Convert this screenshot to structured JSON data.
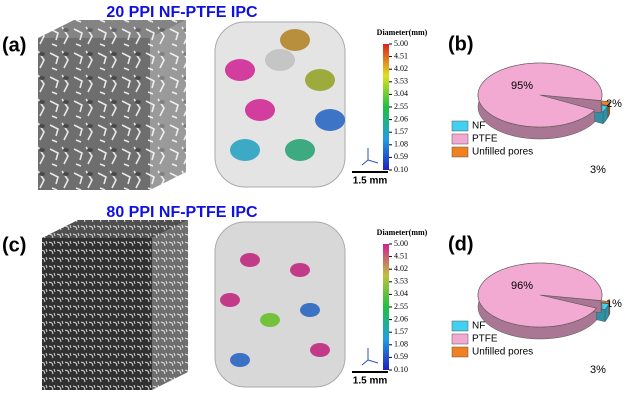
{
  "rows": [
    {
      "title": "20 PPI NF-PTFE IPC",
      "image_label": "(a)",
      "scale_bar": "1.5 mm",
      "colorbar": {
        "title": "Diameter(mm)",
        "ylim": [
          0.1,
          5.0
        ],
        "colors": [
          "#2020c0",
          "#20a0e0",
          "#20c040",
          "#e0e020",
          "#e02020"
        ],
        "ticks": [
          {
            "value": 5.0,
            "label": "5.00"
          },
          {
            "value": 4.51,
            "label": "4.51"
          },
          {
            "value": 4.02,
            "label": "4.02"
          },
          {
            "value": 3.53,
            "label": "3.53"
          },
          {
            "value": 3.04,
            "label": "3.04"
          },
          {
            "value": 2.55,
            "label": "2.55"
          },
          {
            "value": 2.06,
            "label": "2.06"
          },
          {
            "value": 1.57,
            "label": "1.57"
          },
          {
            "value": 1.08,
            "label": "1.08"
          },
          {
            "value": 0.59,
            "label": "0.59"
          },
          {
            "value": 0.1,
            "label": "0.10"
          }
        ]
      },
      "chart": {
        "type": "pie",
        "label": "(b)",
        "categories": [
          "NF",
          "PTFE",
          "Unfilled pores"
        ],
        "values": [
          3,
          95,
          2
        ],
        "value_labels": [
          "3%",
          "95%",
          "2%"
        ],
        "colors": [
          "#40d0f0",
          "#f2a9d2",
          "#f08020"
        ]
      }
    },
    {
      "title": "80 PPI NF-PTFE IPC",
      "image_label": "(c)",
      "scale_bar": "1.5 mm",
      "colorbar": {
        "title": "Diameter(mm)",
        "ylim": [
          0.1,
          5.0
        ],
        "colors": [
          "#2020c0",
          "#20a0e0",
          "#20c040",
          "#c0c040",
          "#d02090"
        ],
        "ticks": [
          {
            "value": 5.0,
            "label": "5.00"
          },
          {
            "value": 4.51,
            "label": "4.51"
          },
          {
            "value": 4.02,
            "label": "4.02"
          },
          {
            "value": 3.53,
            "label": "3.53"
          },
          {
            "value": 3.04,
            "label": "3.04"
          },
          {
            "value": 2.55,
            "label": "2.55"
          },
          {
            "value": 2.06,
            "label": "2.06"
          },
          {
            "value": 1.57,
            "label": "1.57"
          },
          {
            "value": 1.08,
            "label": "1.08"
          },
          {
            "value": 0.59,
            "label": "0.59"
          },
          {
            "value": 0.1,
            "label": "0.10"
          }
        ]
      },
      "chart": {
        "type": "pie",
        "label": "(d)",
        "categories": [
          "NF",
          "PTFE",
          "Unfilled pores"
        ],
        "values": [
          3,
          96,
          1
        ],
        "value_labels": [
          "3%",
          "96%",
          "1%"
        ],
        "colors": [
          "#40d0f0",
          "#f2a9d2",
          "#f08020"
        ]
      }
    }
  ]
}
